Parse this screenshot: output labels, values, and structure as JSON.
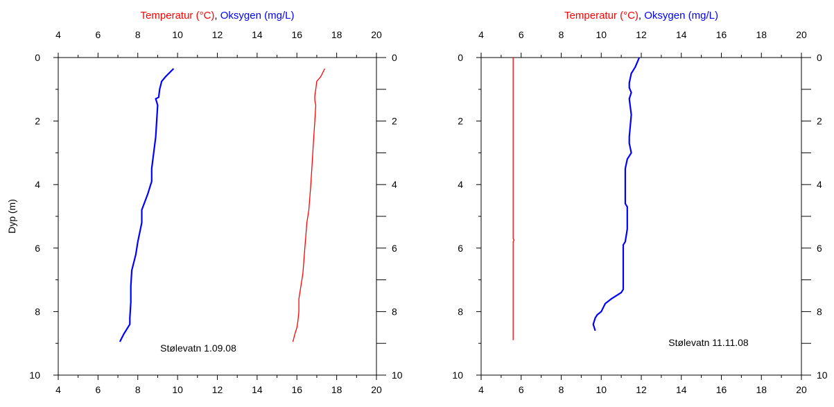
{
  "chart_data": [
    {
      "type": "line",
      "title_parts": [
        {
          "text": "Temperatur (°C)",
          "color": "#ff0000"
        },
        {
          "text": ", ",
          "color": "#000000"
        },
        {
          "text": "Oksygen (mg/L)",
          "color": "#0000ff"
        }
      ],
      "ylabel": "Dyp (m)",
      "xlim": [
        4,
        20
      ],
      "ylim": [
        0,
        10
      ],
      "y_inverted": true,
      "x_ticks": [
        4,
        6,
        8,
        10,
        12,
        14,
        16,
        18,
        20
      ],
      "y_ticks": [
        0,
        2,
        4,
        6,
        8,
        10
      ],
      "annotation": "Stølevatn 1.09.08",
      "series": [
        {
          "color": "#ff0000",
          "x": [
            17.4,
            17.2,
            17.0,
            16.95,
            16.9,
            16.9,
            16.95,
            16.9,
            16.85,
            16.8,
            16.75,
            16.7,
            16.65,
            16.6,
            16.5,
            16.45,
            16.4,
            16.35,
            16.3,
            16.2,
            16.1,
            16.1,
            16.05,
            16.0,
            15.9,
            15.8
          ],
          "y": [
            0.35,
            0.6,
            0.75,
            1.0,
            1.2,
            1.35,
            1.5,
            2.0,
            2.5,
            3.0,
            3.5,
            4.0,
            4.4,
            4.8,
            5.2,
            5.6,
            6.0,
            6.4,
            6.8,
            7.2,
            7.6,
            8.0,
            8.3,
            8.5,
            8.7,
            8.95
          ]
        },
        {
          "color": "#0000ff",
          "x": [
            9.8,
            9.4,
            9.2,
            9.1,
            9.05,
            8.9,
            9.0,
            8.9,
            8.8,
            8.7,
            8.7,
            8.5,
            8.2,
            8.2,
            8.0,
            7.9,
            7.7,
            7.65,
            7.65,
            7.6,
            7.6,
            7.5,
            7.3,
            7.1
          ],
          "y": [
            0.35,
            0.6,
            0.75,
            1.0,
            1.25,
            1.3,
            1.5,
            2.5,
            3.0,
            3.5,
            3.9,
            4.3,
            4.8,
            5.2,
            5.8,
            6.2,
            6.7,
            7.2,
            7.7,
            8.2,
            8.4,
            8.5,
            8.7,
            8.95
          ]
        }
      ]
    },
    {
      "type": "line",
      "title_parts": [
        {
          "text": "Temperatur (°C)",
          "color": "#ff0000"
        },
        {
          "text": ", ",
          "color": "#000000"
        },
        {
          "text": "Oksygen (mg/L)",
          "color": "#0000ff"
        }
      ],
      "ylabel": "",
      "xlim": [
        4,
        20
      ],
      "ylim": [
        0,
        10
      ],
      "y_inverted": true,
      "x_ticks": [
        4,
        6,
        8,
        10,
        12,
        14,
        16,
        18,
        20
      ],
      "y_ticks": [
        0,
        2,
        4,
        6,
        8,
        10
      ],
      "annotation": "Stølevatn 11.11.08",
      "series": [
        {
          "color": "#ff0000",
          "x": [
            5.6,
            5.6,
            5.6,
            5.6,
            5.65,
            5.6,
            5.6,
            5.6
          ],
          "y": [
            0.0,
            2.0,
            4.0,
            5.7,
            5.75,
            5.8,
            8.0,
            8.9
          ]
        },
        {
          "color": "#0000ff",
          "x": [
            11.9,
            11.7,
            11.5,
            11.4,
            11.4,
            11.5,
            11.4,
            11.5,
            11.4,
            11.4,
            11.5,
            11.3,
            11.2,
            11.2,
            11.2,
            11.3,
            11.3,
            11.2,
            11.1,
            11.1,
            11.1,
            11.0,
            10.5,
            10.2,
            10.0,
            9.8,
            9.7,
            9.6,
            9.7
          ],
          "y": [
            0.0,
            0.3,
            0.5,
            0.8,
            0.95,
            1.1,
            1.3,
            1.8,
            2.5,
            2.7,
            3.0,
            3.2,
            3.5,
            4.2,
            4.6,
            4.7,
            5.4,
            5.8,
            5.9,
            6.8,
            7.3,
            7.4,
            7.6,
            7.75,
            8.0,
            8.1,
            8.2,
            8.4,
            8.6
          ]
        }
      ]
    }
  ]
}
